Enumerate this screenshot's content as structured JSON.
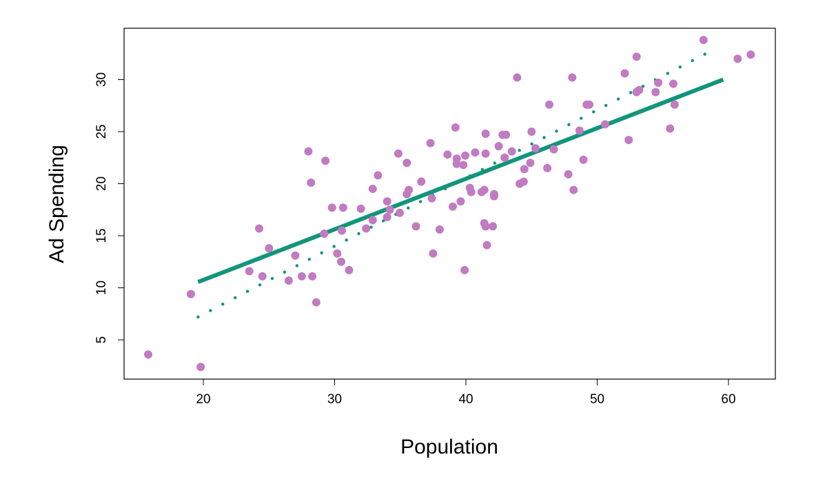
{
  "chart_data": {
    "type": "scatter",
    "title": "",
    "xlabel": "Population",
    "ylabel": "Ad Spending",
    "xlim": [
      13.96,
      63.57
    ],
    "ylim": [
      1.23,
      34.93
    ],
    "xticks": [
      20,
      30,
      40,
      50,
      60
    ],
    "yticks": [
      5,
      10,
      15,
      20,
      25,
      30
    ],
    "grid": false,
    "colors": {
      "points": "#C17BC2",
      "line": "#12957A"
    },
    "points": [
      [
        15.8,
        3.6
      ],
      [
        19.8,
        2.4
      ],
      [
        19.05,
        9.4
      ],
      [
        24.25,
        15.7
      ],
      [
        25.0,
        13.8
      ],
      [
        23.5,
        11.6
      ],
      [
        24.5,
        11.1
      ],
      [
        26.5,
        10.7
      ],
      [
        27.0,
        13.1
      ],
      [
        27.5,
        11.1
      ],
      [
        28.0,
        23.1
      ],
      [
        28.2,
        20.1
      ],
      [
        28.3,
        11.1
      ],
      [
        28.6,
        8.6
      ],
      [
        29.2,
        15.2
      ],
      [
        29.3,
        22.2
      ],
      [
        29.8,
        17.7
      ],
      [
        30.2,
        13.3
      ],
      [
        30.55,
        15.5
      ],
      [
        30.5,
        12.5
      ],
      [
        30.65,
        17.7
      ],
      [
        31.1,
        11.7
      ],
      [
        32.0,
        17.6
      ],
      [
        32.4,
        15.7
      ],
      [
        32.9,
        16.5
      ],
      [
        32.9,
        19.5
      ],
      [
        33.3,
        20.8
      ],
      [
        34.0,
        18.3
      ],
      [
        34.0,
        16.8
      ],
      [
        34.2,
        17.5
      ],
      [
        34.85,
        22.9
      ],
      [
        34.96,
        17.2
      ],
      [
        35.5,
        22.0
      ],
      [
        35.5,
        19.0
      ],
      [
        35.65,
        19.4
      ],
      [
        36.2,
        15.9
      ],
      [
        36.6,
        20.2
      ],
      [
        37.3,
        23.9
      ],
      [
        37.4,
        18.6
      ],
      [
        37.5,
        13.3
      ],
      [
        38.0,
        15.6
      ],
      [
        38.6,
        22.8
      ],
      [
        39.0,
        17.8
      ],
      [
        39.2,
        25.4
      ],
      [
        39.3,
        22.4
      ],
      [
        39.3,
        21.9
      ],
      [
        39.6,
        18.3
      ],
      [
        39.8,
        21.8
      ],
      [
        39.9,
        11.7
      ],
      [
        39.95,
        22.7
      ],
      [
        40.3,
        19.6
      ],
      [
        40.4,
        19.2
      ],
      [
        40.7,
        23.0
      ],
      [
        41.2,
        19.2
      ],
      [
        41.4,
        19.4
      ],
      [
        41.4,
        16.2
      ],
      [
        41.5,
        15.9
      ],
      [
        41.5,
        24.8
      ],
      [
        41.5,
        22.9
      ],
      [
        41.6,
        14.1
      ],
      [
        42.05,
        15.9
      ],
      [
        42.15,
        18.8
      ],
      [
        42.15,
        19.0
      ],
      [
        42.5,
        23.6
      ],
      [
        42.8,
        24.7
      ],
      [
        43.05,
        24.7
      ],
      [
        42.95,
        22.5
      ],
      [
        43.5,
        23.1
      ],
      [
        43.9,
        30.2
      ],
      [
        44.1,
        20.0
      ],
      [
        44.4,
        20.2
      ],
      [
        44.45,
        21.4
      ],
      [
        44.9,
        22.0
      ],
      [
        45.0,
        25.0
      ],
      [
        45.3,
        23.4
      ],
      [
        46.2,
        21.5
      ],
      [
        46.35,
        27.6
      ],
      [
        46.7,
        23.3
      ],
      [
        47.8,
        20.9
      ],
      [
        48.1,
        30.2
      ],
      [
        48.2,
        19.4
      ],
      [
        48.65,
        25.1
      ],
      [
        48.95,
        22.3
      ],
      [
        49.2,
        27.6
      ],
      [
        49.4,
        27.6
      ],
      [
        50.6,
        25.7
      ],
      [
        52.1,
        30.6
      ],
      [
        52.4,
        24.2
      ],
      [
        53.0,
        32.2
      ],
      [
        53.0,
        28.8
      ],
      [
        53.2,
        29.0
      ],
      [
        54.45,
        28.8
      ],
      [
        54.65,
        29.7
      ],
      [
        55.55,
        25.3
      ],
      [
        55.8,
        29.6
      ],
      [
        55.9,
        27.6
      ],
      [
        58.1,
        33.8
      ],
      [
        60.7,
        32.0
      ],
      [
        61.7,
        32.4
      ]
    ],
    "fitted_line": {
      "name": "fitted",
      "style": "solid",
      "x": [
        19.6,
        59.6
      ],
      "y": [
        10.56,
        30.0
      ]
    },
    "true_line": {
      "name": "true",
      "style": "dotted",
      "x": [
        19.6,
        58.75
      ],
      "y": [
        7.2,
        32.8
      ]
    }
  }
}
